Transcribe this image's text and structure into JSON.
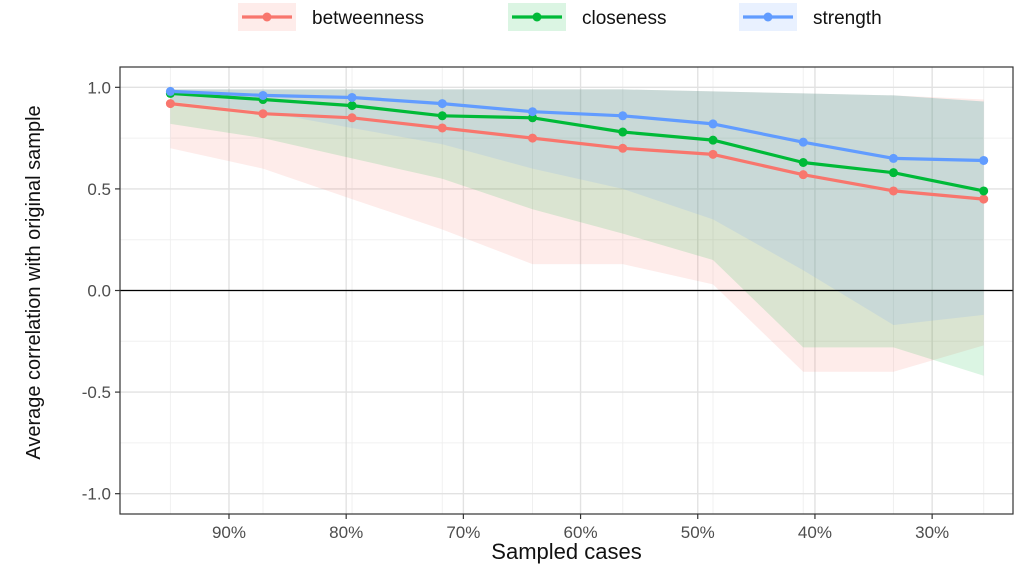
{
  "chart_data": {
    "type": "line",
    "title": "",
    "xlabel": "Sampled cases",
    "ylabel": "Average correlation with original sample",
    "x": [
      0.95,
      0.871,
      0.795,
      0.718,
      0.641,
      0.564,
      0.487,
      0.41,
      0.333,
      0.256
    ],
    "xlim": [
      0.993,
      0.231
    ],
    "ylim": [
      -1.1,
      1.1
    ],
    "x_ticks": [
      {
        "value": 0.9,
        "label": "90%"
      },
      {
        "value": 0.8,
        "label": "80%"
      },
      {
        "value": 0.7,
        "label": "70%"
      },
      {
        "value": 0.6,
        "label": "60%"
      },
      {
        "value": 0.5,
        "label": "50%"
      },
      {
        "value": 0.4,
        "label": "40%"
      },
      {
        "value": 0.3,
        "label": "30%"
      }
    ],
    "y_ticks": [
      {
        "value": 1.0,
        "label": "1.0"
      },
      {
        "value": 0.5,
        "label": "0.5"
      },
      {
        "value": 0.0,
        "label": "0.0"
      },
      {
        "value": -0.5,
        "label": "-0.5"
      },
      {
        "value": -1.0,
        "label": "-1.0"
      }
    ],
    "hline": 0,
    "grid": true,
    "legend_position": "top",
    "series": [
      {
        "name": "betweenness",
        "color": "#f8766d",
        "values": [
          0.92,
          0.87,
          0.85,
          0.8,
          0.75,
          0.7,
          0.67,
          0.57,
          0.49,
          0.45
        ],
        "lower": [
          0.7,
          0.6,
          0.45,
          0.3,
          0.13,
          0.13,
          0.03,
          -0.4,
          -0.4,
          -0.27
        ],
        "upper": [
          0.99,
          0.99,
          0.99,
          0.99,
          0.99,
          0.99,
          0.98,
          0.97,
          0.96,
          0.94
        ]
      },
      {
        "name": "closeness",
        "color": "#00ba38",
        "values": [
          0.97,
          0.94,
          0.91,
          0.86,
          0.85,
          0.78,
          0.74,
          0.63,
          0.58,
          0.49
        ],
        "lower": [
          0.82,
          0.75,
          0.65,
          0.55,
          0.4,
          0.28,
          0.15,
          -0.28,
          -0.28,
          -0.42
        ],
        "upper": [
          0.99,
          0.99,
          0.99,
          0.99,
          0.99,
          0.99,
          0.98,
          0.97,
          0.96,
          0.93
        ]
      },
      {
        "name": "strength",
        "color": "#619cff",
        "values": [
          0.98,
          0.96,
          0.95,
          0.92,
          0.88,
          0.86,
          0.82,
          0.73,
          0.65,
          0.64
        ],
        "lower": [
          0.93,
          0.88,
          0.8,
          0.72,
          0.6,
          0.5,
          0.35,
          0.1,
          -0.17,
          -0.12
        ],
        "upper": [
          0.99,
          0.99,
          0.99,
          0.99,
          0.99,
          0.99,
          0.98,
          0.97,
          0.96,
          0.93
        ]
      }
    ]
  }
}
